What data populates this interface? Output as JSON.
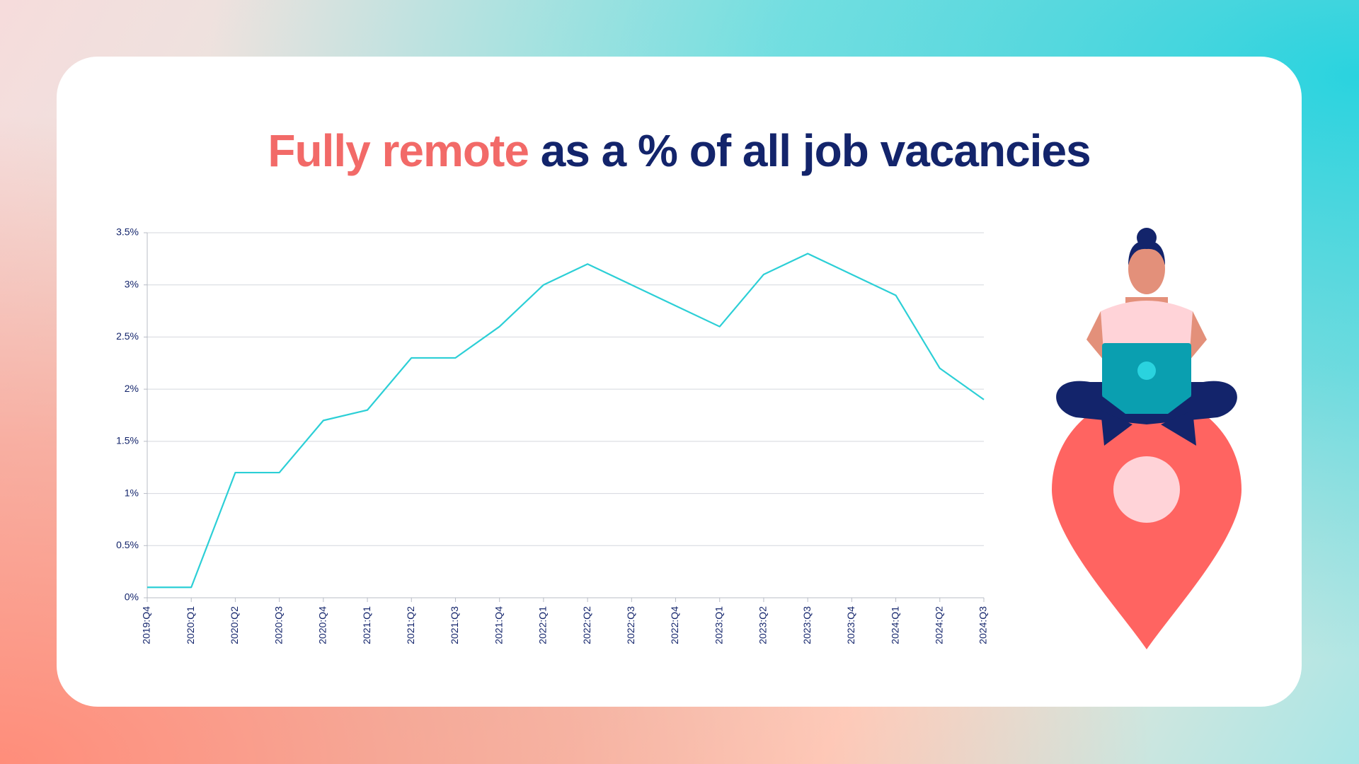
{
  "chart_data": {
    "type": "line",
    "title": {
      "highlight": "Fully remote",
      "rest": "as a % of all job vacancies"
    },
    "categories": [
      "2019:Q4",
      "2020:Q1",
      "2020:Q2",
      "2020:Q3",
      "2020:Q4",
      "2021:Q1",
      "2021:Q2",
      "2021:Q3",
      "2021:Q4",
      "2022:Q1",
      "2022:Q2",
      "2022:Q3",
      "2022:Q4",
      "2023:Q1",
      "2023:Q2",
      "2023:Q3",
      "2023:Q4",
      "2024:Q1",
      "2024:Q2",
      "2024:Q3"
    ],
    "values": [
      0.1,
      0.1,
      1.2,
      1.2,
      1.7,
      1.8,
      2.3,
      2.3,
      2.6,
      3.0,
      3.2,
      3.0,
      2.8,
      2.6,
      3.1,
      3.3,
      3.1,
      2.9,
      2.2,
      1.9
    ],
    "color": "#2ccfd6",
    "ylim": [
      0,
      3.5
    ],
    "yticks": [
      {
        "value": 0,
        "label": "0%"
      },
      {
        "value": 0.5,
        "label": "0.5%"
      },
      {
        "value": 1,
        "label": "1%"
      },
      {
        "value": 1.5,
        "label": "1.5%"
      },
      {
        "value": 2,
        "label": "2%"
      },
      {
        "value": 2.5,
        "label": "2.5%"
      },
      {
        "value": 3,
        "label": "3%"
      },
      {
        "value": 3.5,
        "label": "3.5%"
      }
    ],
    "grid": true
  }
}
